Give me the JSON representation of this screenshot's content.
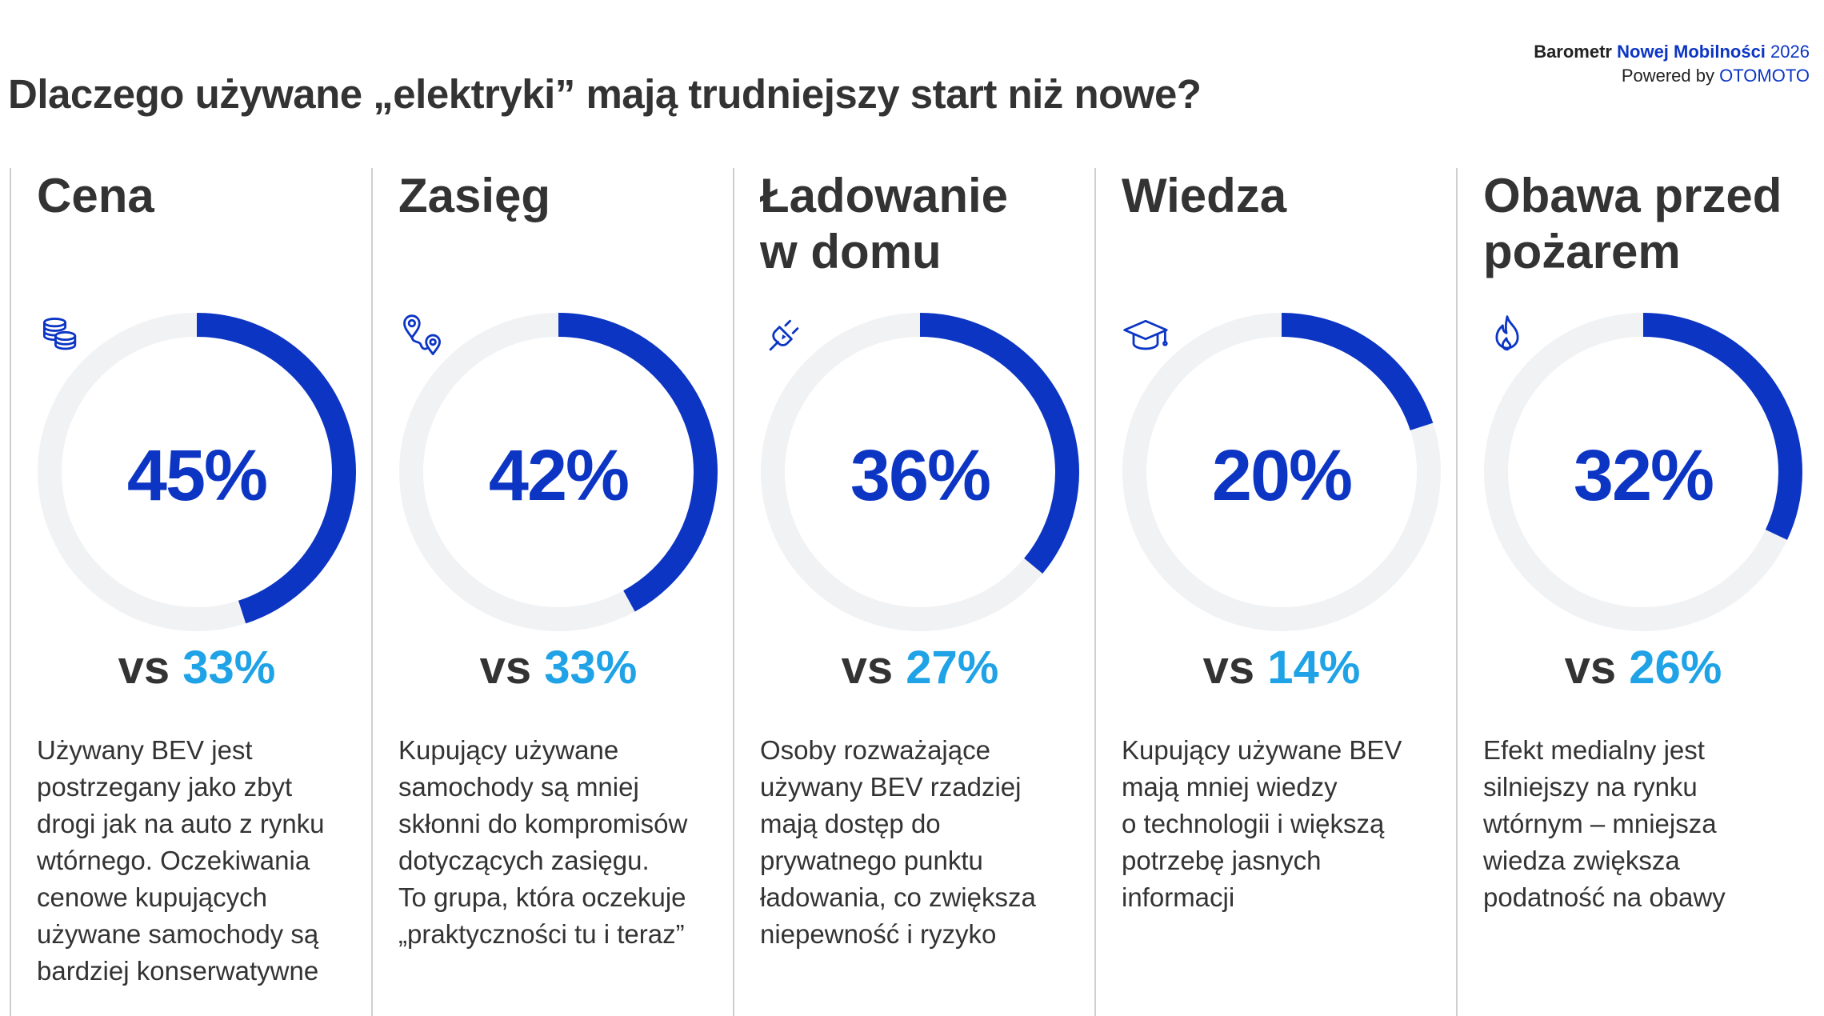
{
  "header": {
    "brand_prefix": "Barometr",
    "brand_accent": "Nowej Mobilności",
    "brand_year": "2026",
    "powered_prefix": "Powered by",
    "powered_brand": "OTOMOTO",
    "title": "Dlaczego używane „elektryki” mają trudniejszy start niż nowe?"
  },
  "colors": {
    "accent": "#0c35c4",
    "comparison": "#1fa3e6",
    "track": "#f1f2f4",
    "text": "#333333"
  },
  "chart_data": {
    "type": "donut-gauges",
    "items": [
      {
        "title_lines": [
          "Cena"
        ],
        "icon": "coins-icon",
        "value": 45,
        "value_label": "45%",
        "vs_word": "vs",
        "comparison": 33,
        "comparison_label": "33%",
        "description_lines": [
          "Używany BEV jest",
          "postrzegany jako zbyt",
          "drogi jak na auto z rynku",
          "wtórnego. Oczekiwania",
          "cenowe kupujących",
          "używane samochody są",
          "bardziej konserwatywne"
        ]
      },
      {
        "title_lines": [
          "Zasięg"
        ],
        "icon": "route-pins-icon",
        "value": 42,
        "value_label": "42%",
        "vs_word": "vs",
        "comparison": 33,
        "comparison_label": "33%",
        "description_lines": [
          "Kupujący używane",
          "samochody są mniej",
          "skłonni do kompromisów",
          "dotyczących zasięgu.",
          "To grupa, która oczekuje",
          "„praktyczności tu i teraz”"
        ]
      },
      {
        "title_lines": [
          "Ładowanie",
          "w domu"
        ],
        "icon": "plug-icon",
        "value": 36,
        "value_label": "36%",
        "vs_word": "vs",
        "comparison": 27,
        "comparison_label": "27%",
        "description_lines": [
          "Osoby rozważające",
          "używany BEV rzadziej",
          "mają dostęp do",
          "prywatnego punktu",
          "ładowania, co zwiększa",
          "niepewność i ryzyko"
        ]
      },
      {
        "title_lines": [
          "Wiedza"
        ],
        "icon": "graduation-cap-icon",
        "value": 20,
        "value_label": "20%",
        "vs_word": "vs",
        "comparison": 14,
        "comparison_label": "14%",
        "description_lines": [
          "Kupujący używane BEV",
          "mają mniej wiedzy",
          "o technologii i większą",
          "potrzebę jasnych",
          "informacji"
        ]
      },
      {
        "title_lines": [
          "Obawa przed",
          "pożarem"
        ],
        "icon": "flame-icon",
        "value": 32,
        "value_label": "32%",
        "vs_word": "vs",
        "comparison": 26,
        "comparison_label": "26%",
        "description_lines": [
          "Efekt medialny jest",
          "silniejszy na rynku",
          "wtórnym – mniejsza",
          "wiedza zwiększa",
          "podatność na obawy"
        ]
      }
    ]
  }
}
